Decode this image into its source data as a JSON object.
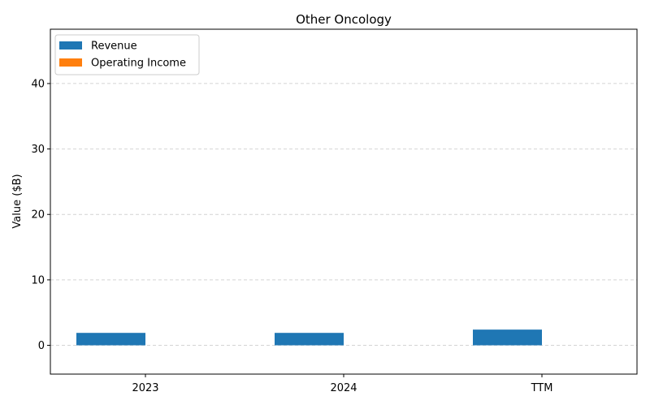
{
  "chart_data": {
    "type": "bar",
    "title": "Other Oncology",
    "xlabel": "",
    "ylabel": "Value ($B)",
    "categories": [
      "2023",
      "2024",
      "TTM"
    ],
    "series": [
      {
        "name": "Revenue",
        "values": [
          1.9,
          1.9,
          2.4
        ],
        "color": "#1f77b4"
      },
      {
        "name": "Operating Income",
        "values": [
          0,
          0,
          0
        ],
        "color": "#ff7f0e"
      }
    ],
    "ylim": [
      -4.4,
      48.3
    ],
    "yticks": [
      0,
      10,
      20,
      30,
      40
    ],
    "grid": "y-dashed",
    "legend_position": "top-left"
  }
}
